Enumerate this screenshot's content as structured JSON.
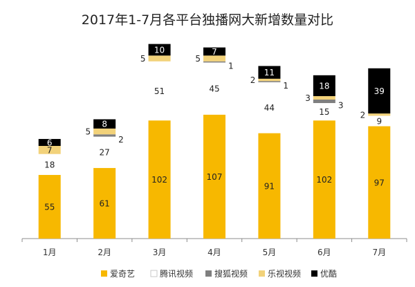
{
  "chart_data": {
    "type": "bar",
    "stacked": true,
    "title": "2017年1-7月各平台独播网大新增数量对比",
    "xlabel": "",
    "ylabel": "",
    "categories": [
      "1月",
      "2月",
      "3月",
      "4月",
      "5月",
      "6月",
      "7月"
    ],
    "series": [
      {
        "name": "爱奇艺",
        "color": "#F7B800",
        "values": [
          55,
          61,
          102,
          107,
          91,
          102,
          97
        ]
      },
      {
        "name": "腾讯视频",
        "color": "#FFFFFF",
        "values": [
          18,
          27,
          51,
          45,
          44,
          15,
          9
        ]
      },
      {
        "name": "搜狐视频",
        "color": "#7F7F7F",
        "values": [
          0,
          2,
          0,
          1,
          1,
          3,
          0
        ]
      },
      {
        "name": "乐视视频",
        "color": "#F2D27A",
        "values": [
          7,
          5,
          5,
          5,
          2,
          3,
          2
        ]
      },
      {
        "name": "优酷",
        "color": "#000000",
        "values": [
          6,
          8,
          10,
          7,
          11,
          18,
          39
        ]
      }
    ],
    "gridlines": false,
    "legend": "bottom"
  }
}
